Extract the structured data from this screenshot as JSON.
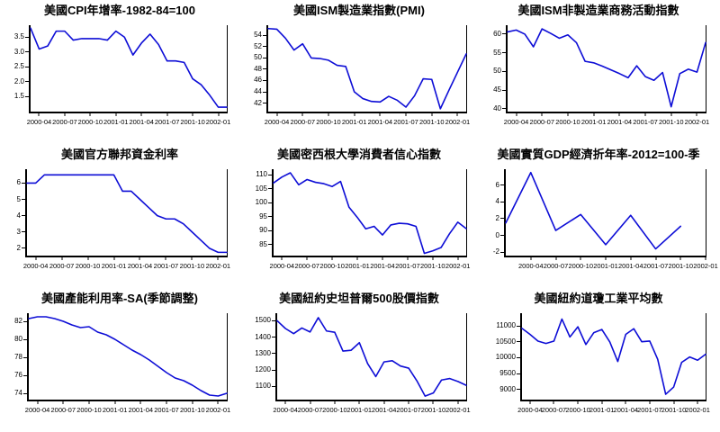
{
  "page": {
    "background": "#ffffff",
    "description": "3x3 grid of US macroeconomic indicator line charts, monthly/quarterly data 2000-2002"
  },
  "line_color": "#0d0dd6",
  "axis_color": "#000000",
  "chart_data": [
    {
      "type": "line",
      "title": "美國CPI年增率-1982-84=100",
      "ylabel": "",
      "xlabel": "",
      "yticks": [
        "1.5",
        "2.0",
        "2.5",
        "3.0",
        "3.5"
      ],
      "ytick_values": [
        1.5,
        2.0,
        2.5,
        3.0,
        3.5
      ],
      "ylim": [
        1.0,
        3.9
      ],
      "x_ticks": [
        "2000-04",
        "2000-07",
        "2000-10",
        "2001-01",
        "2001-04",
        "2001-07",
        "2001-10",
        "2002-01"
      ],
      "values": [
        3.8,
        3.1,
        3.2,
        3.7,
        3.7,
        3.4,
        3.45,
        3.45,
        3.45,
        3.4,
        3.7,
        3.5,
        2.9,
        3.3,
        3.6,
        3.25,
        2.7,
        2.7,
        2.65,
        2.1,
        1.9,
        1.55,
        1.15,
        1.15
      ],
      "total_slots": 24,
      "tick_start": 1,
      "tick_step": 3,
      "left_margin": 32,
      "grid": false,
      "legend": "none"
    },
    {
      "type": "line",
      "title": "美國ISM製造業指數(PMI)",
      "ylabel": "",
      "xlabel": "",
      "yticks": [
        "42",
        "44",
        "46",
        "48",
        "50",
        "52",
        "54"
      ],
      "ytick_values": [
        42,
        44,
        46,
        48,
        50,
        52,
        54
      ],
      "ylim": [
        40.5,
        55.8
      ],
      "x_ticks": [
        "2000-04",
        "2000-07",
        "2000-10",
        "2001-01",
        "2001-04",
        "2001-07",
        "2001-10",
        "2002-01"
      ],
      "values": [
        55.2,
        55.1,
        53.5,
        51.4,
        52.5,
        50.0,
        49.9,
        49.6,
        48.7,
        48.5,
        44.0,
        42.8,
        42.3,
        42.2,
        43.2,
        42.5,
        41.3,
        43.3,
        46.3,
        46.2,
        41.0,
        44.3,
        47.5,
        50.7
      ],
      "total_slots": 24,
      "tick_start": 1,
      "tick_step": 3,
      "left_margin": 30,
      "grid": false,
      "legend": "none"
    },
    {
      "type": "line",
      "title": "美國ISM非製造業商務活動指數",
      "ylabel": "",
      "xlabel": "",
      "yticks": [
        "40",
        "45",
        "50",
        "55",
        "60"
      ],
      "ytick_values": [
        40,
        45,
        50,
        55,
        60
      ],
      "ylim": [
        39.2,
        62.4
      ],
      "x_ticks": [
        "2000-04",
        "2000-07",
        "2000-10",
        "2001-01",
        "2001-04",
        "2001-07",
        "2001-10",
        "2002-01"
      ],
      "values": [
        60.6,
        61.1,
        60.0,
        56.6,
        61.4,
        60.2,
        58.9,
        59.8,
        57.7,
        52.7,
        52.3,
        51.4,
        50.4,
        49.4,
        48.3,
        51.5,
        48.6,
        47.6,
        49.7,
        40.5,
        49.4,
        50.6,
        49.8,
        57.7
      ],
      "total_slots": 24,
      "tick_start": 1,
      "tick_step": 3,
      "left_margin": 30,
      "grid": false,
      "legend": "none"
    },
    {
      "type": "line",
      "title": "美國官方聯邦資金利率",
      "ylabel": "",
      "xlabel": "",
      "yticks": [
        "2",
        "3",
        "4",
        "5",
        "6"
      ],
      "ytick_values": [
        2,
        3,
        4,
        5,
        6
      ],
      "ylim": [
        1.55,
        6.85
      ],
      "x_ticks": [
        "2000-04",
        "2000-07",
        "2000-10",
        "2001-01",
        "2001-04",
        "2001-07",
        "2001-10",
        "2002-01"
      ],
      "values": [
        6.0,
        6.0,
        6.5,
        6.5,
        6.5,
        6.5,
        6.5,
        6.5,
        6.5,
        6.5,
        6.5,
        5.5,
        5.5,
        5.0,
        4.5,
        4.0,
        3.8,
        3.8,
        3.5,
        3.0,
        2.5,
        2.0,
        1.75,
        1.75
      ],
      "total_slots": 24,
      "tick_start": 1,
      "tick_step": 3,
      "left_margin": 28,
      "grid": false,
      "legend": "none"
    },
    {
      "type": "line",
      "title": "美國密西根大學消費者信心指數",
      "ylabel": "",
      "xlabel": "",
      "yticks": [
        "85",
        "90",
        "95",
        "100",
        "105",
        "110"
      ],
      "ytick_values": [
        85,
        90,
        95,
        100,
        105,
        110
      ],
      "ylim": [
        81.0,
        112.0
      ],
      "x_ticks": [
        "2000-04",
        "2000-07",
        "2000-10",
        "2001-01",
        "2001-04",
        "2001-07",
        "2001-10",
        "2002-01"
      ],
      "values": [
        107.1,
        109.2,
        110.7,
        106.4,
        108.3,
        107.3,
        106.8,
        105.8,
        107.6,
        98.4,
        94.7,
        90.6,
        91.5,
        88.4,
        92.0,
        92.6,
        92.4,
        91.5,
        81.8,
        82.7,
        83.9,
        88.8,
        93.0,
        90.7
      ],
      "total_slots": 24,
      "tick_start": 1,
      "tick_step": 3,
      "left_margin": 36,
      "grid": false,
      "legend": "none"
    },
    {
      "type": "line",
      "title": "美國實質GDP經濟折年率-2012=100-季",
      "ylabel": "",
      "xlabel": "",
      "yticks": [
        "-2",
        "0",
        "2",
        "4",
        "6"
      ],
      "ytick_values": [
        -2,
        0,
        2,
        4,
        6
      ],
      "ylim": [
        -2.4,
        7.9
      ],
      "x_ticks": [
        "2000-04",
        "2000-07",
        "2000-10",
        "2001-01",
        "2001-04",
        "2001-07",
        "2001-10",
        "2002-01"
      ],
      "values": [
        1.5,
        7.5,
        0.6,
        2.5,
        -1.1,
        2.4,
        -1.6,
        1.1
      ],
      "total_slots": 9,
      "tick_start": 1,
      "tick_step": 1,
      "left_margin": 28,
      "grid": false,
      "legend": "none"
    },
    {
      "type": "line",
      "title": "美國產能利用率-SA(季節調整)",
      "ylabel": "",
      "xlabel": "",
      "yticks": [
        "74",
        "76",
        "78",
        "80",
        "82"
      ],
      "ytick_values": [
        74,
        76,
        78,
        80,
        82
      ],
      "ylim": [
        73.3,
        82.9
      ],
      "x_ticks": [
        "2000-04",
        "2000-07",
        "2000-10",
        "2001-01",
        "2001-04",
        "2001-07",
        "2001-10",
        "2002-01"
      ],
      "values": [
        82.3,
        82.5,
        82.5,
        82.3,
        82.0,
        81.6,
        81.3,
        81.4,
        80.8,
        80.5,
        80.0,
        79.4,
        78.8,
        78.3,
        77.7,
        77.0,
        76.3,
        75.7,
        75.4,
        74.9,
        74.3,
        73.8,
        73.7,
        74.0
      ],
      "total_slots": 24,
      "tick_start": 1,
      "tick_step": 3,
      "left_margin": 30,
      "grid": false,
      "legend": "none"
    },
    {
      "type": "line",
      "title": "美國紐約史坦普爾500股價指數",
      "ylabel": "",
      "xlabel": "",
      "yticks": [
        "1100",
        "1200",
        "1300",
        "1400",
        "1500"
      ],
      "ytick_values": [
        1100,
        1200,
        1300,
        1400,
        1500
      ],
      "ylim": [
        1020,
        1545
      ],
      "x_ticks": [
        "2000-04",
        "2000-07",
        "2000-10",
        "2001-01",
        "2001-04",
        "2001-07",
        "2001-10",
        "2002-01"
      ],
      "values": [
        1499,
        1452,
        1421,
        1455,
        1431,
        1518,
        1437,
        1429,
        1315,
        1320,
        1366,
        1239,
        1160,
        1249,
        1256,
        1224,
        1211,
        1134,
        1041,
        1060,
        1139,
        1148,
        1130,
        1107
      ],
      "total_slots": 24,
      "tick_start": 1,
      "tick_step": 3,
      "left_margin": 40,
      "grid": false,
      "legend": "none"
    },
    {
      "type": "line",
      "title": "美國紐約道瓊工業平均數",
      "ylabel": "",
      "xlabel": "",
      "yticks": [
        "9000",
        "9500",
        "10000",
        "10500",
        "11000"
      ],
      "ytick_values": [
        9000,
        9500,
        10000,
        10500,
        11000
      ],
      "ylim": [
        8680,
        11400
      ],
      "x_ticks": [
        "2000-04",
        "2000-07",
        "2000-10",
        "2001-01",
        "2001-04",
        "2001-07",
        "2001-10",
        "2002-01"
      ],
      "values": [
        10922,
        10734,
        10522,
        10448,
        10522,
        11215,
        10651,
        10971,
        10414,
        10788,
        10887,
        10495,
        9879,
        10735,
        10912,
        10502,
        10523,
        9950,
        8848,
        9075,
        9852,
        10021,
        9920,
        10106
      ],
      "total_slots": 24,
      "tick_start": 1,
      "tick_step": 3,
      "left_margin": 46,
      "grid": false,
      "legend": "none"
    }
  ]
}
